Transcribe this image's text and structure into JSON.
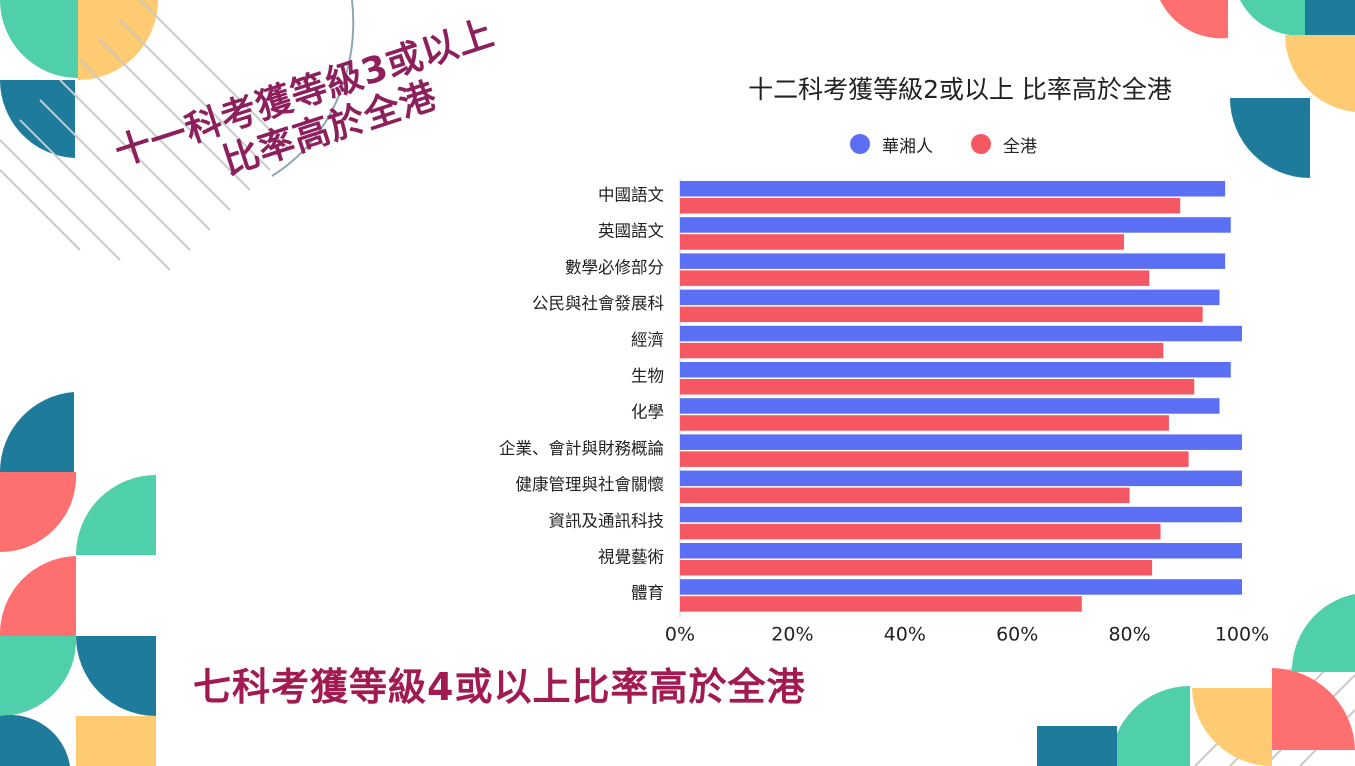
{
  "headlines": {
    "rotated_line1": "十一科考獲等級3或以上",
    "rotated_line2": "比率高於全港",
    "bottom": "七科考獲等級4或以上比率高於全港"
  },
  "colors": {
    "series_school": "#5b6ff5",
    "series_hk": "#f55862",
    "headline": "#8d1f5c",
    "deco_teal": "#4fcfaa",
    "deco_yellow": "#fecb72",
    "deco_blue": "#1f7b9c",
    "deco_coral": "#fe6f70"
  },
  "chart_data": {
    "type": "bar",
    "orientation": "horizontal",
    "title": "十二科考獲等級2或以上 比率高於全港",
    "categories": [
      "中國語文",
      "英國語文",
      "數學必修部分",
      "公民與社會發展科",
      "經濟",
      "生物",
      "化學",
      "企業、會計與財務概論",
      "健康管理與社會關懷",
      "資訊及通訊科技",
      "視覺藝術",
      "體育"
    ],
    "series": [
      {
        "name": "華湘人",
        "values": [
          97,
          98,
          97,
          96,
          100,
          98,
          96,
          100,
          100,
          100,
          100,
          100
        ]
      },
      {
        "name": "全港",
        "values": [
          89,
          79,
          83.5,
          93,
          86,
          91.5,
          87,
          90.5,
          80,
          85.5,
          84,
          71.5
        ]
      }
    ],
    "xlim": [
      0,
      100
    ],
    "x_ticks": [
      "0%",
      "20%",
      "40%",
      "60%",
      "80%",
      "100%"
    ],
    "legend_position": "top",
    "grid": false
  }
}
